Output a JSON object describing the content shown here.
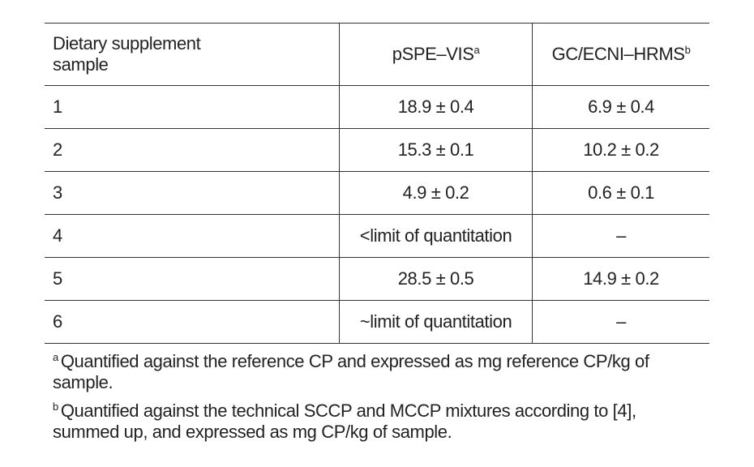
{
  "table": {
    "header": [
      "Dietary supplement sample",
      "pSPE–VIS",
      "GC/ECNI–HRMS"
    ],
    "header_marks": [
      "",
      "a",
      "b"
    ],
    "rows": [
      [
        "1",
        "18.9 ± 0.4",
        "6.9 ± 0.4"
      ],
      [
        "2",
        "15.3 ± 0.1",
        "10.2 ± 0.2"
      ],
      [
        "3",
        "4.9 ± 0.2",
        "0.6 ± 0.1"
      ],
      [
        "4",
        "<limit of quantitation",
        "–"
      ],
      [
        "5",
        "28.5 ± 0.5",
        "14.9 ± 0.2"
      ],
      [
        "6",
        "~limit of quantitation",
        "–"
      ]
    ]
  },
  "footnotes": [
    {
      "mark": "a",
      "text": "Quantified against the reference CP and expressed as mg reference CP/kg of sample."
    },
    {
      "mark": "b",
      "text": "Quantified against the technical SCCP and MCCP mixtures according to [4], summed up, and expressed as mg CP/kg of sample."
    }
  ]
}
